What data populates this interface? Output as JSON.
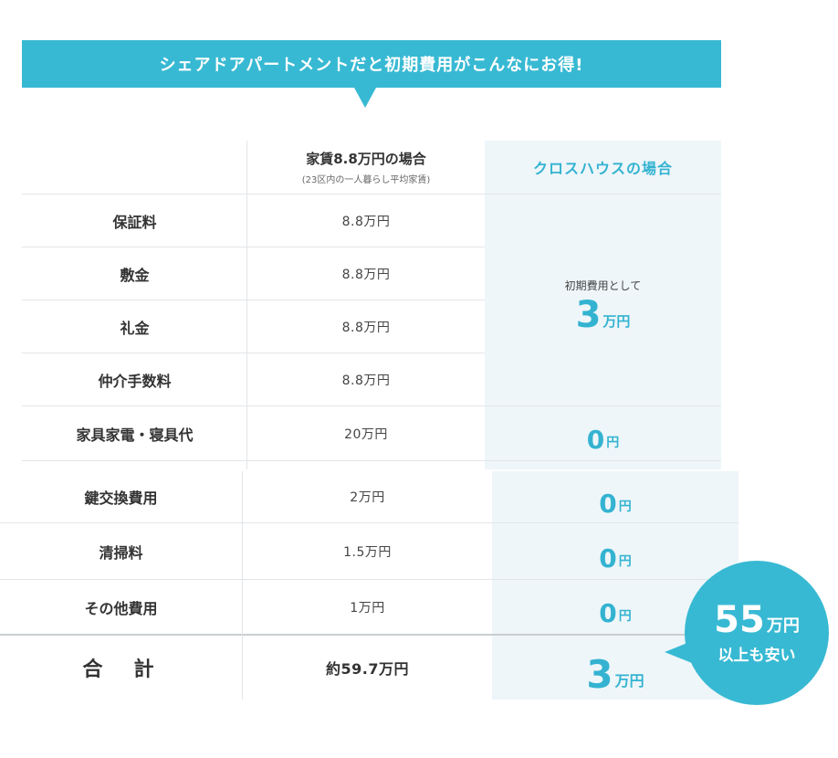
{
  "banner": {
    "text": "シェアドアパートメントだと初期費用がこんなにお得!"
  },
  "header": {
    "col_rent_title": "家賃8.8万円の場合",
    "col_rent_sub": "(23区内の一人暮らし平均家賃)",
    "col_cross": "クロスハウスの場合"
  },
  "rows": [
    {
      "label": "保証料",
      "rent": "8.8万円"
    },
    {
      "label": "敷金",
      "rent": "8.8万円"
    },
    {
      "label": "礼金",
      "rent": "8.8万円"
    },
    {
      "label": "仲介手数料",
      "rent": "8.8万円"
    },
    {
      "label": "家具家電・寝具代",
      "rent": "20万円",
      "cross_num": "0",
      "cross_unit": "円"
    },
    {
      "label": "鍵交換費用",
      "rent": "2万円",
      "cross_num": "0",
      "cross_unit": "円"
    },
    {
      "label": "清掃料",
      "rent": "1.5万円",
      "cross_num": "0",
      "cross_unit": "円"
    },
    {
      "label": "その他費用",
      "rent": "1万円",
      "cross_num": "0",
      "cross_unit": "円"
    }
  ],
  "merged": {
    "caption": "初期費用として",
    "num": "3",
    "unit": "万円"
  },
  "total": {
    "label": "合　計",
    "rent": "約59.7万円",
    "cross_num": "3",
    "cross_unit": "万円"
  },
  "bubble": {
    "num": "55",
    "unit": "万円",
    "sub": "以上も安い"
  },
  "colors": {
    "accent": "#38b9d3",
    "cyan_text": "#34b3d1",
    "panel_bg": "#eef6f9"
  }
}
